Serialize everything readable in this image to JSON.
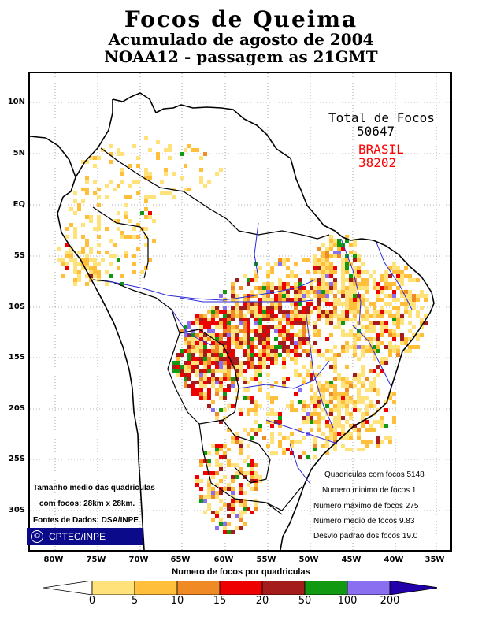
{
  "title": {
    "line1": "Focos de Queima",
    "line2": "Acumulado de agosto de 2004",
    "line3": "NOAA12 - passagem as 21GMT"
  },
  "totals": {
    "label": "Total de Focos",
    "total": "50647",
    "brasil_label": "BRASIL",
    "brasil_total": "38202",
    "brasil_color": "#ff0000"
  },
  "axes": {
    "lat_labels": [
      "10N",
      "5N",
      "EQ",
      "5S",
      "10S",
      "15S",
      "20S",
      "25S",
      "30S"
    ],
    "lon_labels": [
      "80W",
      "75W",
      "70W",
      "65W",
      "60W",
      "55W",
      "50W",
      "45W",
      "40W",
      "35W"
    ],
    "lat_range": [
      -34,
      13
    ],
    "lon_range": [
      -84,
      -34
    ]
  },
  "stats": [
    "Quadriculas com focos 5148",
    "Numero minimo de focos 1",
    "Numero maximo de focos 275",
    "Numero medio de focos 9.83",
    "Desvio padrao dos focos 19.0"
  ],
  "notes": {
    "line1": "Tamanho medio das quadriculas",
    "line2": "com focos: 28km  x  28km.",
    "line3": "Fontes de Dados: DSA/INPE"
  },
  "badge": {
    "icon": "copyright-icon",
    "label": "CPTEC/INPE"
  },
  "legend": {
    "title": "Numero de focos por quadriculas",
    "ticks": [
      "0",
      "5",
      "10",
      "15",
      "20",
      "50",
      "100",
      "200"
    ],
    "colors": [
      "#ffffff",
      "#ffe27a",
      "#ffbf3a",
      "#f08a24",
      "#ee0000",
      "#a51c1c",
      "#119911",
      "#8a6ff0",
      "#2200aa"
    ]
  }
}
